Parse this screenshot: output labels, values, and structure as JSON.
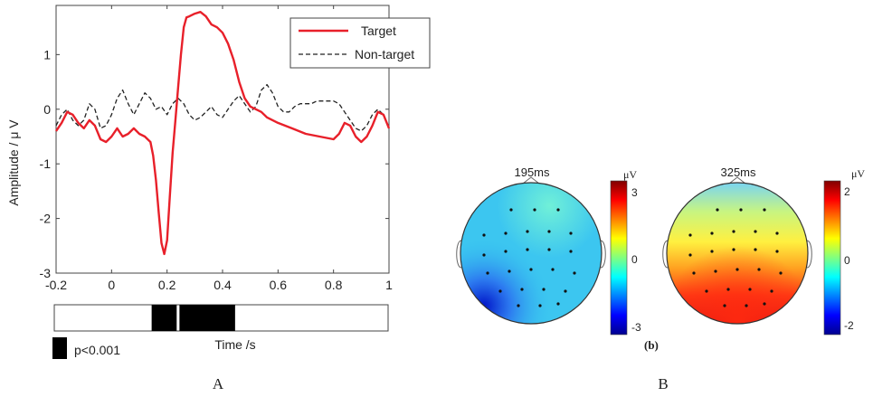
{
  "panel_labels": {
    "a": "A",
    "b": "B",
    "b_sub": "(b)"
  },
  "erp": {
    "ylabel": "Amplitude / μ V",
    "xlabel": "Time /s",
    "legend": {
      "target": "Target",
      "non_target": "Non-target"
    },
    "significance_label": "p<0.001",
    "x_ticks": [
      "-0.2",
      "0",
      "0.2",
      "0.4",
      "0.6",
      "0.8",
      "1"
    ],
    "y_ticks": [
      "1",
      "0",
      "-1",
      "-2",
      "-3"
    ]
  },
  "maps": {
    "map1": {
      "title": "195ms",
      "unit": "μV",
      "ticks": [
        "3",
        "0",
        "-3"
      ]
    },
    "map2": {
      "title": "325ms",
      "unit": "μV",
      "ticks": [
        "2",
        "0",
        "-2"
      ]
    }
  },
  "chart_data": [
    {
      "type": "line",
      "xlabel": "Time /s",
      "ylabel": "Amplitude / μ V",
      "xlim": [
        -0.2,
        1.0
      ],
      "ylim": [
        -3,
        1.9
      ],
      "legend_position": "top-right",
      "series": [
        {
          "name": "Target",
          "color": "#e8202a",
          "style": "solid",
          "x": [
            -0.2,
            -0.18,
            -0.16,
            -0.14,
            -0.12,
            -0.1,
            -0.08,
            -0.06,
            -0.04,
            -0.02,
            0,
            0.02,
            0.04,
            0.06,
            0.08,
            0.1,
            0.12,
            0.14,
            0.15,
            0.16,
            0.17,
            0.18,
            0.19,
            0.2,
            0.21,
            0.22,
            0.23,
            0.24,
            0.25,
            0.26,
            0.27,
            0.28,
            0.3,
            0.32,
            0.34,
            0.36,
            0.38,
            0.4,
            0.42,
            0.44,
            0.46,
            0.48,
            0.5,
            0.52,
            0.54,
            0.56,
            0.6,
            0.65,
            0.7,
            0.75,
            0.8,
            0.82,
            0.84,
            0.86,
            0.88,
            0.9,
            0.92,
            0.94,
            0.96,
            0.98,
            1.0
          ],
          "y": [
            -0.4,
            -0.25,
            -0.05,
            -0.1,
            -0.25,
            -0.35,
            -0.2,
            -0.3,
            -0.55,
            -0.6,
            -0.5,
            -0.35,
            -0.5,
            -0.45,
            -0.35,
            -0.45,
            -0.5,
            -0.6,
            -0.85,
            -1.3,
            -1.9,
            -2.45,
            -2.65,
            -2.4,
            -1.6,
            -0.8,
            -0.2,
            0.4,
            1.0,
            1.5,
            1.68,
            1.7,
            1.75,
            1.78,
            1.7,
            1.55,
            1.5,
            1.4,
            1.2,
            0.9,
            0.5,
            0.2,
            0.05,
            0.0,
            -0.05,
            -0.15,
            -0.25,
            -0.35,
            -0.45,
            -0.5,
            -0.55,
            -0.45,
            -0.25,
            -0.3,
            -0.5,
            -0.6,
            -0.5,
            -0.3,
            -0.05,
            -0.1,
            -0.35
          ]
        },
        {
          "name": "Non-target",
          "color": "#222222",
          "style": "dashed",
          "x": [
            -0.2,
            -0.18,
            -0.16,
            -0.14,
            -0.12,
            -0.1,
            -0.08,
            -0.06,
            -0.04,
            -0.02,
            0,
            0.02,
            0.04,
            0.06,
            0.08,
            0.1,
            0.12,
            0.14,
            0.16,
            0.18,
            0.2,
            0.22,
            0.24,
            0.26,
            0.28,
            0.3,
            0.32,
            0.34,
            0.36,
            0.38,
            0.4,
            0.42,
            0.44,
            0.46,
            0.48,
            0.5,
            0.52,
            0.54,
            0.56,
            0.58,
            0.6,
            0.62,
            0.64,
            0.66,
            0.68,
            0.7,
            0.72,
            0.74,
            0.76,
            0.78,
            0.8,
            0.82,
            0.84,
            0.86,
            0.88,
            0.9,
            0.92,
            0.94,
            0.96,
            0.98,
            1.0
          ],
          "y": [
            -0.3,
            -0.1,
            0.0,
            -0.2,
            -0.3,
            -0.2,
            0.1,
            0.0,
            -0.35,
            -0.3,
            -0.1,
            0.2,
            0.35,
            0.1,
            -0.1,
            0.1,
            0.3,
            0.2,
            0.0,
            0.05,
            -0.1,
            0.1,
            0.2,
            0.1,
            -0.1,
            -0.2,
            -0.15,
            -0.05,
            0.05,
            -0.1,
            -0.15,
            0.0,
            0.15,
            0.25,
            0.1,
            -0.05,
            0.05,
            0.35,
            0.45,
            0.3,
            0.05,
            -0.05,
            -0.05,
            0.05,
            0.1,
            0.1,
            0.1,
            0.15,
            0.15,
            0.15,
            0.15,
            0.1,
            -0.05,
            -0.2,
            -0.35,
            -0.4,
            -0.3,
            -0.1,
            0.0,
            -0.1,
            -0.35
          ]
        }
      ],
      "significance_intervals": [
        [
          0.15,
          0.24
        ],
        [
          0.25,
          0.45
        ]
      ]
    },
    {
      "type": "heatmap",
      "title": "195ms",
      "unit": "μV",
      "colorbar_range": [
        -3,
        3
      ],
      "colorbar_ticks": [
        3,
        0,
        -3
      ]
    },
    {
      "type": "heatmap",
      "title": "325ms",
      "unit": "μV",
      "colorbar_range": [
        -2,
        2
      ],
      "colorbar_ticks": [
        2,
        0,
        -2
      ]
    }
  ]
}
